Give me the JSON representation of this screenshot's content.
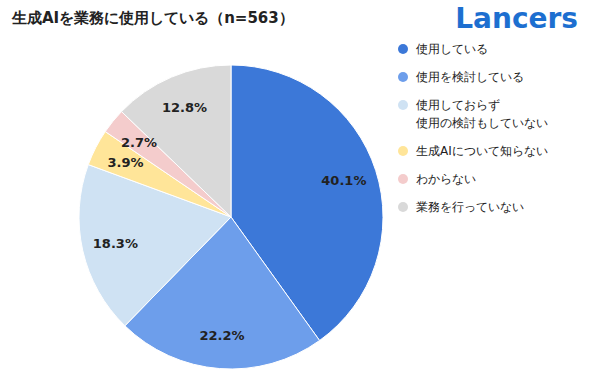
{
  "chart_data": {
    "type": "pie",
    "title": "生成AIを業務に使用している（n=563）",
    "annotations": [
      "Lancers"
    ],
    "categories": [
      "使用している",
      "使用を検討している",
      "使用しておらず\n使用の検討もしていない",
      "生成AIについて知らない",
      "わからない",
      "業務を行っていない"
    ],
    "values": [
      40.1,
      22.2,
      18.3,
      3.9,
      2.7,
      12.8
    ],
    "value_labels": [
      "40.1%",
      "22.2%",
      "18.3%",
      "3.9%",
      "2.7%",
      "12.8%"
    ],
    "colors": [
      "#3c78d8",
      "#6d9eeb",
      "#cfe2f3",
      "#ffe599",
      "#f4cccc",
      "#d9d9d9"
    ],
    "data_labels": true,
    "legend": "right"
  }
}
